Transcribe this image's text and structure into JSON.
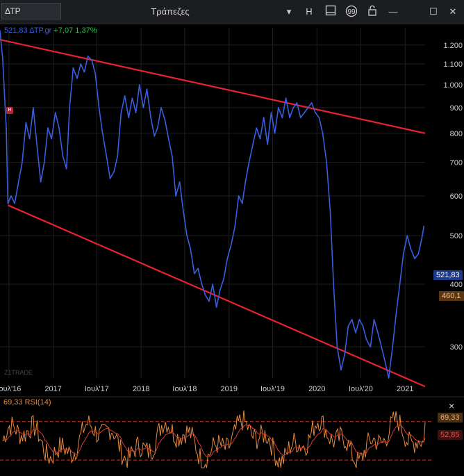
{
  "window": {
    "symbol_box": "ΔΤΡ",
    "title": "Τράπεζες",
    "toolbar": {
      "chevron": "▾",
      "h_button": "H",
      "minimize": "—",
      "maximize": "☐",
      "close": "✕"
    }
  },
  "legend": {
    "price": "521,83",
    "symbol": "ΔΤΡ.gr",
    "change": "+7,07",
    "change_pct": "1,37%"
  },
  "rsi_legend": {
    "value": "69,33",
    "label": "RSI(14)"
  },
  "watermark": "Z1TRADE",
  "marker_r": "R",
  "rsi_close": "×",
  "colors": {
    "line": "#3a5ee0",
    "channel": "#e8222e",
    "rsi": "#e8893a",
    "rsi_ma": "#d43a3a",
    "price_badge": "#1b3a8c",
    "ref_badge": "#5a3514",
    "rsi_badge": "#4a3016",
    "rsi_ma_badge": "#3c1212"
  },
  "chart_data": {
    "type": "line",
    "y_scale": "log",
    "ylim": [
      260,
      1250
    ],
    "y_ticks": [
      300,
      400,
      500,
      600,
      700,
      800,
      900,
      1000,
      1100,
      1200
    ],
    "y_tick_labels": [
      "300",
      "400",
      "500",
      "600",
      "700",
      "800",
      "900",
      "1.000",
      "1.100",
      "1.200"
    ],
    "x_ticks": [
      "2016-07-01",
      "2017-01-01",
      "2017-07-01",
      "2018-01-01",
      "2018-07-01",
      "2019-01-01",
      "2019-07-01",
      "2020-01-01",
      "2020-07-01",
      "2021-01-01"
    ],
    "x_tick_labels": [
      "Ιουλ'16",
      "2017",
      "Ιουλ'17",
      "2018",
      "Ιουλ'18",
      "2019",
      "Ιουλ'19",
      "2020",
      "Ιουλ'20",
      "2021"
    ],
    "xlim": [
      "2016-05-25",
      "2021-03-25"
    ],
    "series": [
      {
        "x": [
          "2016-05-25",
          "2016-06-05",
          "2016-06-20",
          "2016-06-27",
          "2016-07-10",
          "2016-07-25",
          "2016-08-10",
          "2016-08-25",
          "2016-09-10",
          "2016-09-25",
          "2016-10-10",
          "2016-10-25",
          "2016-11-10",
          "2016-11-25",
          "2016-12-10",
          "2016-12-25",
          "2017-01-10",
          "2017-01-25",
          "2017-02-10",
          "2017-02-25",
          "2017-03-10",
          "2017-03-25",
          "2017-04-10",
          "2017-04-25",
          "2017-05-10",
          "2017-05-25",
          "2017-06-10",
          "2017-06-25",
          "2017-07-10",
          "2017-07-25",
          "2017-08-10",
          "2017-08-25",
          "2017-09-10",
          "2017-09-25",
          "2017-10-10",
          "2017-10-25",
          "2017-11-10",
          "2017-11-25",
          "2017-12-10",
          "2017-12-25",
          "2018-01-10",
          "2018-01-25",
          "2018-02-10",
          "2018-02-25",
          "2018-03-10",
          "2018-03-25",
          "2018-04-10",
          "2018-04-25",
          "2018-05-10",
          "2018-05-25",
          "2018-06-10",
          "2018-06-25",
          "2018-07-10",
          "2018-07-25",
          "2018-08-10",
          "2018-08-25",
          "2018-09-10",
          "2018-09-25",
          "2018-10-10",
          "2018-10-25",
          "2018-11-10",
          "2018-11-25",
          "2018-12-10",
          "2018-12-25",
          "2019-01-10",
          "2019-01-25",
          "2019-02-10",
          "2019-02-25",
          "2019-03-10",
          "2019-03-25",
          "2019-04-10",
          "2019-04-25",
          "2019-05-10",
          "2019-05-25",
          "2019-06-10",
          "2019-06-25",
          "2019-07-10",
          "2019-07-25",
          "2019-08-10",
          "2019-08-25",
          "2019-09-10",
          "2019-09-25",
          "2019-10-10",
          "2019-10-25",
          "2019-11-10",
          "2019-11-25",
          "2019-12-10",
          "2019-12-25",
          "2020-01-10",
          "2020-01-25",
          "2020-02-10",
          "2020-02-25",
          "2020-03-10",
          "2020-03-25",
          "2020-04-10",
          "2020-04-25",
          "2020-05-10",
          "2020-05-25",
          "2020-06-10",
          "2020-06-25",
          "2020-07-10",
          "2020-07-25",
          "2020-08-10",
          "2020-08-25",
          "2020-09-10",
          "2020-09-25",
          "2020-10-10",
          "2020-10-25",
          "2020-11-10",
          "2020-11-25",
          "2020-12-10",
          "2020-12-25",
          "2021-01-10",
          "2021-01-25",
          "2021-02-10",
          "2021-02-25",
          "2021-03-10",
          "2021-03-20"
        ],
        "values": [
          1280,
          1130,
          820,
          580,
          600,
          580,
          640,
          700,
          840,
          780,
          900,
          760,
          640,
          700,
          820,
          780,
          880,
          820,
          720,
          680,
          900,
          1080,
          1030,
          1100,
          1060,
          1140,
          1120,
          1050,
          900,
          800,
          720,
          650,
          670,
          720,
          880,
          950,
          860,
          940,
          880,
          1000,
          900,
          980,
          860,
          790,
          820,
          900,
          850,
          780,
          720,
          600,
          640,
          560,
          500,
          470,
          420,
          430,
          400,
          380,
          370,
          400,
          360,
          390,
          410,
          450,
          480,
          520,
          600,
          580,
          640,
          700,
          760,
          820,
          780,
          860,
          760,
          880,
          800,
          900,
          860,
          940,
          860,
          900,
          920,
          860,
          880,
          900,
          920,
          880,
          860,
          800,
          700,
          560,
          400,
          300,
          270,
          290,
          330,
          340,
          320,
          340,
          330,
          310,
          300,
          340,
          320,
          300,
          280,
          260,
          300,
          350,
          400,
          460,
          500,
          470,
          450,
          460,
          490,
          521.83
        ]
      }
    ],
    "channel_lines": [
      {
        "name": "upper",
        "points": [
          [
            "2016-05-25",
            1230
          ],
          [
            "2021-03-25",
            800
          ]
        ]
      },
      {
        "name": "lower",
        "points": [
          [
            "2016-06-27",
            575
          ],
          [
            "2021-03-25",
            250
          ]
        ]
      }
    ],
    "price_labels": [
      {
        "value": 521.83,
        "label": "521,83"
      },
      {
        "value": 460.1,
        "label": "460,1"
      }
    ],
    "rsi": {
      "label": "RSI(14)",
      "current": 69.33,
      "current_label": "69,33",
      "ma_current": 52.85,
      "ma_label": "52,85",
      "levels": [
        70,
        30
      ],
      "ylim": [
        20,
        85
      ]
    }
  }
}
